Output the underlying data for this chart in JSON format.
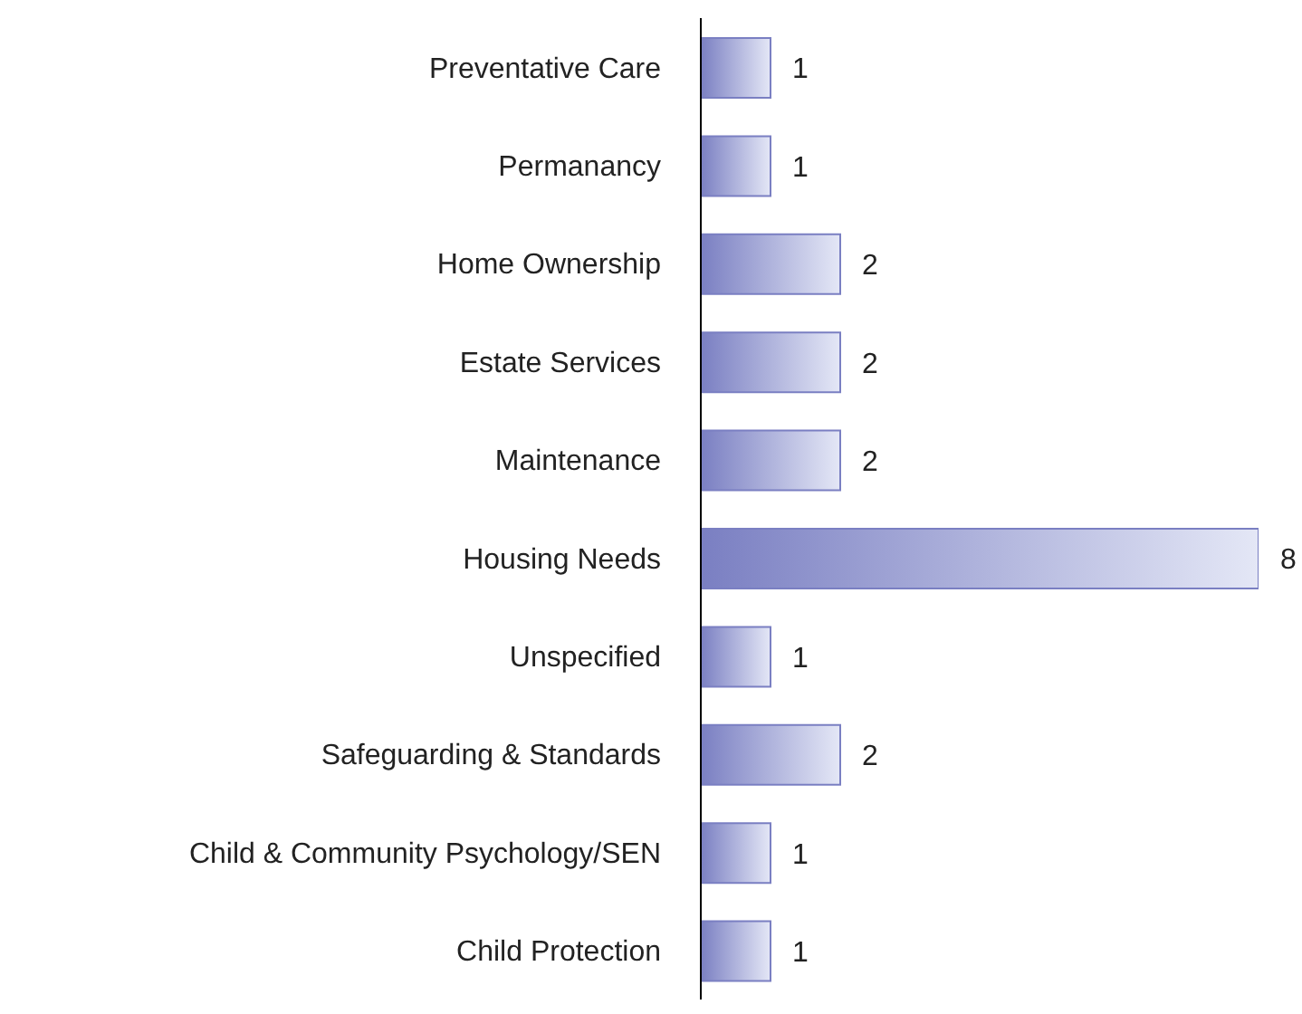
{
  "chart_data": {
    "type": "bar",
    "orientation": "horizontal",
    "categories": [
      "Preventative Care",
      "Permanancy",
      "Home Ownership",
      "Estate Services",
      "Maintenance",
      "Housing Needs",
      "Unspecified",
      "Safeguarding & Standards",
      "Child & Community Psychology/SEN",
      "Child Protection"
    ],
    "values": [
      1,
      1,
      2,
      2,
      2,
      8,
      1,
      2,
      1,
      1
    ],
    "color": "#7a7fc2",
    "data_labels": true,
    "grid": false,
    "legend": false
  }
}
